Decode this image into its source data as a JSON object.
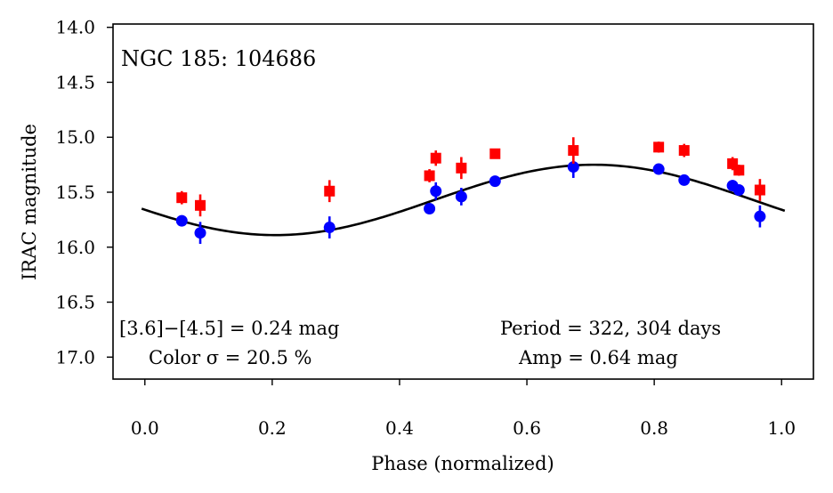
{
  "chart_data": {
    "type": "scatter",
    "title": "NGC 185:  104686",
    "xlabel": "Phase (normalized)",
    "ylabel": "IRAC magnitude",
    "xlim": [
      -0.05,
      1.05
    ],
    "ylim": [
      17.2,
      13.97
    ],
    "y_inverted": true,
    "xticks": [
      0.0,
      0.2,
      0.4,
      0.6,
      0.8,
      1.0
    ],
    "xtick_labels": [
      "0.0",
      "0.2",
      "0.4",
      "0.6",
      "0.8",
      "1.0"
    ],
    "yticks": [
      14.0,
      14.5,
      15.0,
      15.5,
      16.0,
      16.5,
      17.0
    ],
    "ytick_labels": [
      "14.0",
      "14.5",
      "15.0",
      "15.5",
      "16.0",
      "16.5",
      "17.0"
    ],
    "grid": false,
    "colors": {
      "blue_series": "#0000ff",
      "red_series": "#ff0000",
      "model": "#000000"
    },
    "series": [
      {
        "name": "[3.6]",
        "color": "#0000ff",
        "marker": "circle",
        "points": [
          {
            "x": 0.058,
            "y": 15.76,
            "err": 0.04
          },
          {
            "x": 0.087,
            "y": 15.87,
            "err": 0.1
          },
          {
            "x": 0.29,
            "y": 15.82,
            "err": 0.1
          },
          {
            "x": 0.447,
            "y": 15.65,
            "err": 0.04
          },
          {
            "x": 0.457,
            "y": 15.49,
            "err": 0.08
          },
          {
            "x": 0.497,
            "y": 15.54,
            "err": 0.08
          },
          {
            "x": 0.55,
            "y": 15.4,
            "err": 0.04
          },
          {
            "x": 0.673,
            "y": 15.27,
            "err": 0.1
          },
          {
            "x": 0.807,
            "y": 15.29,
            "err": 0.04
          },
          {
            "x": 0.847,
            "y": 15.39,
            "err": 0.04
          },
          {
            "x": 0.923,
            "y": 15.44,
            "err": 0.05
          },
          {
            "x": 0.933,
            "y": 15.48,
            "err": 0.04
          },
          {
            "x": 0.966,
            "y": 15.72,
            "err": 0.1
          }
        ]
      },
      {
        "name": "[4.5]",
        "color": "#ff0000",
        "marker": "square",
        "points": [
          {
            "x": 0.058,
            "y": 15.55,
            "err": 0.06
          },
          {
            "x": 0.087,
            "y": 15.62,
            "err": 0.1
          },
          {
            "x": 0.29,
            "y": 15.49,
            "err": 0.1
          },
          {
            "x": 0.447,
            "y": 15.35,
            "err": 0.06
          },
          {
            "x": 0.457,
            "y": 15.19,
            "err": 0.07
          },
          {
            "x": 0.497,
            "y": 15.28,
            "err": 0.1
          },
          {
            "x": 0.55,
            "y": 15.15,
            "err": 0.04
          },
          {
            "x": 0.673,
            "y": 15.12,
            "err": 0.12
          },
          {
            "x": 0.807,
            "y": 15.09,
            "err": 0.05
          },
          {
            "x": 0.847,
            "y": 15.12,
            "err": 0.06
          },
          {
            "x": 0.923,
            "y": 15.24,
            "err": 0.06
          },
          {
            "x": 0.933,
            "y": 15.3,
            "err": 0.05
          },
          {
            "x": 0.966,
            "y": 15.48,
            "err": 0.1
          }
        ]
      }
    ],
    "model_curve": {
      "type": "sine",
      "mean": 15.57,
      "amplitude": 0.32,
      "min_phase": 0.205,
      "x_range": [
        -0.005,
        1.005
      ]
    },
    "annotations": {
      "color_line1": "[3.6]−[4.5] = 0.24 mag",
      "color_line2": "Color σ = 20.5 %",
      "period_line": "Period = 322, 304 days",
      "amp_line": "Amp = 0.64 mag"
    }
  }
}
